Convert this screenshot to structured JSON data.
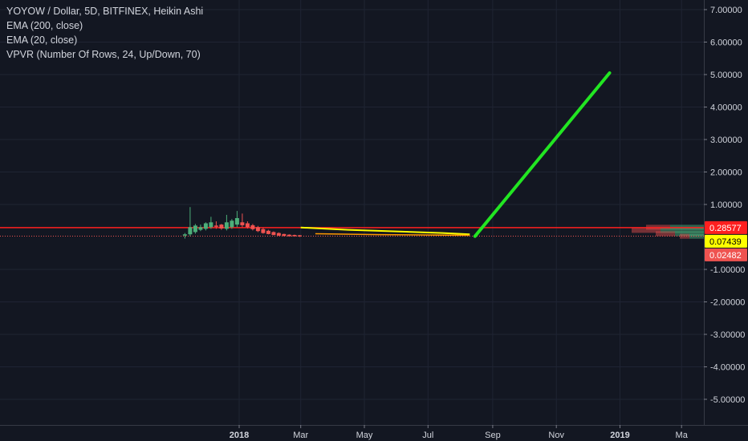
{
  "legend": {
    "title": "YOYOW / Dollar, 5D, BITFINEX, Heikin Ashi",
    "ema200": "EMA (200, close)",
    "ema20": "EMA (20, close)",
    "vpvr": "VPVR (Number Of Rows, 24, Up/Down, 70)"
  },
  "colors": {
    "background": "#131722",
    "grid": "#1f2433",
    "up": "#4cae79",
    "down": "#ef5350",
    "ema200": "#ffff00",
    "ema20": "#ff9800",
    "hline": "#ff1f1f",
    "drawing": "#22e622",
    "text": "#d1d4dc"
  },
  "chart_data": {
    "type": "candlestick",
    "title": "YOYOW / Dollar, 5D, BITFINEX, Heikin Ashi",
    "ylim": [
      -5.6,
      7.3
    ],
    "y_ticks": [
      "7.00000",
      "6.00000",
      "5.00000",
      "4.00000",
      "3.00000",
      "2.00000",
      "1.00000",
      "-1.00000",
      "-2.00000",
      "-3.00000",
      "-4.00000",
      "-5.00000"
    ],
    "x_ticks": [
      {
        "label": "2018",
        "bold": true,
        "date": "2018-01-01"
      },
      {
        "label": "Mar",
        "bold": false,
        "date": "2018-03-01"
      },
      {
        "label": "May",
        "bold": false,
        "date": "2018-05-01"
      },
      {
        "label": "Jul",
        "bold": false,
        "date": "2018-07-01"
      },
      {
        "label": "Sep",
        "bold": false,
        "date": "2018-09-01"
      },
      {
        "label": "Nov",
        "bold": false,
        "date": "2018-11-01"
      },
      {
        "label": "2019",
        "bold": true,
        "date": "2019-01-01"
      },
      {
        "label": "Ma",
        "bold": false,
        "date": "2019-03-01"
      }
    ],
    "candles": [
      {
        "date": "2017-11-10",
        "open": 0.05,
        "high": 0.12,
        "low": -0.05,
        "close": 0.08,
        "dir": "up"
      },
      {
        "date": "2017-11-15",
        "open": 0.08,
        "high": 0.92,
        "low": 0.02,
        "close": 0.3,
        "dir": "up"
      },
      {
        "date": "2017-11-20",
        "open": 0.15,
        "high": 0.4,
        "low": 0.1,
        "close": 0.35,
        "dir": "up"
      },
      {
        "date": "2017-11-25",
        "open": 0.22,
        "high": 0.38,
        "low": 0.18,
        "close": 0.3,
        "dir": "up"
      },
      {
        "date": "2017-11-30",
        "open": 0.25,
        "high": 0.45,
        "low": 0.2,
        "close": 0.42,
        "dir": "up"
      },
      {
        "date": "2017-12-05",
        "open": 0.3,
        "high": 0.62,
        "low": 0.25,
        "close": 0.45,
        "dir": "up"
      },
      {
        "date": "2017-12-10",
        "open": 0.35,
        "high": 0.48,
        "low": 0.25,
        "close": 0.32,
        "dir": "down"
      },
      {
        "date": "2017-12-15",
        "open": 0.38,
        "high": 0.4,
        "low": 0.22,
        "close": 0.26,
        "dir": "down"
      },
      {
        "date": "2017-12-20",
        "open": 0.25,
        "high": 0.68,
        "low": 0.2,
        "close": 0.45,
        "dir": "up"
      },
      {
        "date": "2017-12-25",
        "open": 0.3,
        "high": 0.55,
        "low": 0.25,
        "close": 0.5,
        "dir": "up"
      },
      {
        "date": "2017-12-30",
        "open": 0.38,
        "high": 0.8,
        "low": 0.3,
        "close": 0.58,
        "dir": "up"
      },
      {
        "date": "2018-01-04",
        "open": 0.45,
        "high": 0.72,
        "low": 0.3,
        "close": 0.36,
        "dir": "down"
      },
      {
        "date": "2018-01-09",
        "open": 0.42,
        "high": 0.48,
        "low": 0.26,
        "close": 0.3,
        "dir": "down"
      },
      {
        "date": "2018-01-14",
        "open": 0.36,
        "high": 0.4,
        "low": 0.2,
        "close": 0.24,
        "dir": "down"
      },
      {
        "date": "2018-01-19",
        "open": 0.3,
        "high": 0.34,
        "low": 0.15,
        "close": 0.18,
        "dir": "down"
      },
      {
        "date": "2018-01-24",
        "open": 0.24,
        "high": 0.28,
        "low": 0.1,
        "close": 0.12,
        "dir": "down"
      },
      {
        "date": "2018-01-29",
        "open": 0.19,
        "high": 0.22,
        "low": 0.08,
        "close": 0.09,
        "dir": "down"
      },
      {
        "date": "2018-02-03",
        "open": 0.15,
        "high": 0.17,
        "low": 0.05,
        "close": 0.06,
        "dir": "down"
      },
      {
        "date": "2018-02-08",
        "open": 0.12,
        "high": 0.14,
        "low": 0.03,
        "close": 0.04,
        "dir": "down"
      },
      {
        "date": "2018-02-13",
        "open": 0.09,
        "high": 0.1,
        "low": 0.02,
        "close": 0.03,
        "dir": "down"
      },
      {
        "date": "2018-02-18",
        "open": 0.07,
        "high": 0.08,
        "low": 0.01,
        "close": 0.02,
        "dir": "down"
      },
      {
        "date": "2018-02-23",
        "open": 0.06,
        "high": 0.07,
        "low": 0.01,
        "close": 0.02,
        "dir": "down"
      },
      {
        "date": "2018-02-28",
        "open": 0.05,
        "high": 0.06,
        "low": 0.0,
        "close": 0.02,
        "dir": "down"
      }
    ],
    "ema200": {
      "name": "EMA (200, close)",
      "points": [
        [
          "2018-03-01",
          0.29
        ],
        [
          "2018-04-15",
          0.22
        ],
        [
          "2018-06-01",
          0.17
        ],
        [
          "2018-07-15",
          0.12
        ],
        [
          "2018-08-10",
          0.08
        ]
      ]
    },
    "ema20": {
      "name": "EMA (20, close)",
      "points": [
        [
          "2018-03-15",
          0.1
        ],
        [
          "2018-05-15",
          0.07
        ],
        [
          "2018-08-10",
          0.05
        ]
      ]
    },
    "horizontal_line": {
      "value": 0.28577
    },
    "trend_line": {
      "from": [
        "2018-08-15",
        0.02
      ],
      "to": [
        "2018-12-22",
        5.05
      ]
    },
    "price_tags": [
      {
        "value": 0.28577,
        "label": "0.28577",
        "bg": "#ff1f1f",
        "fg": "#ffffff"
      },
      {
        "value": 0.07439,
        "label": "0.07439",
        "bg": "#ffff00",
        "fg": "#000000"
      },
      {
        "value": 0.02482,
        "label": "0.02482",
        "bg": "#ef5350",
        "fg": "#ffffff"
      }
    ],
    "vpvr": [
      {
        "price": 0.3,
        "up": 0.7,
        "down": 0.5
      },
      {
        "price": 0.2,
        "up": 0.9,
        "down": 0.6
      },
      {
        "price": 0.1,
        "up": 0.6,
        "down": 0.4
      },
      {
        "price": 0.02,
        "up": 0.3,
        "down": 0.2
      }
    ]
  }
}
